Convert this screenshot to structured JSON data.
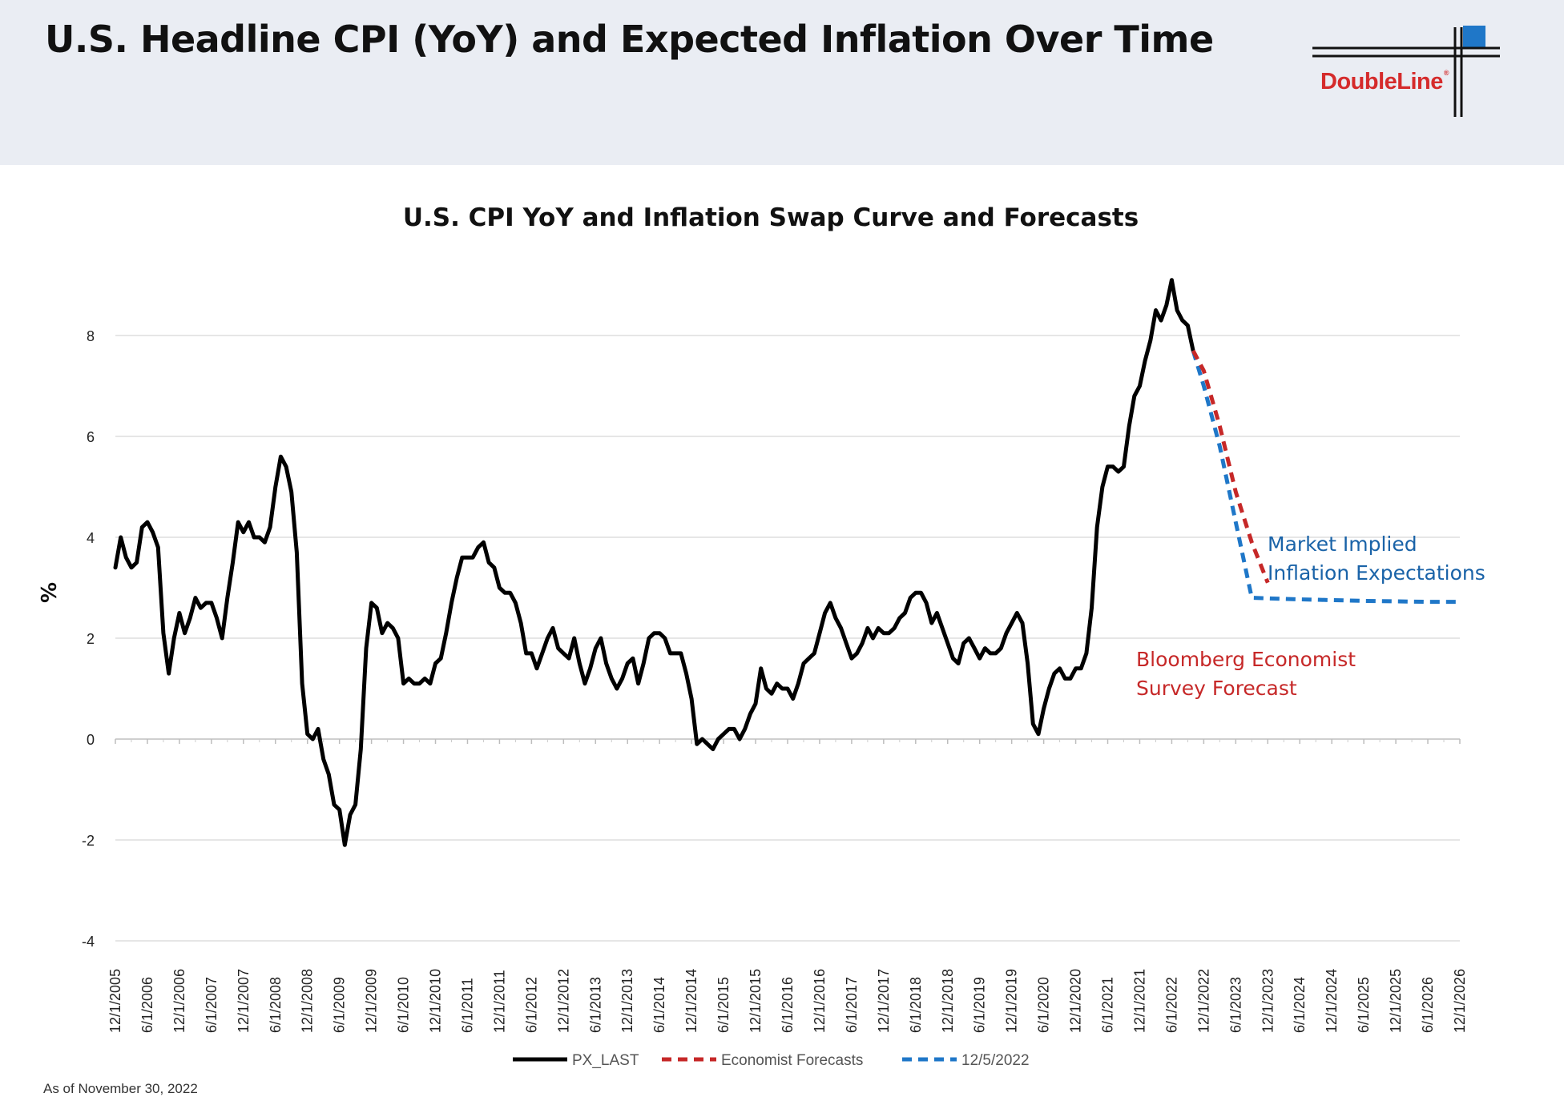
{
  "header": {
    "title": "U.S. Headline CPI (YoY) and Expected Inflation Over Time",
    "logo_text": "DoubleLine",
    "logo_mark": "®"
  },
  "footnote": "As of November 30, 2022",
  "colors": {
    "header_bg": "#eaedf3",
    "cpi_line": "#000000",
    "economist_forecast": "#c62828",
    "market_implied": "#1f77c8",
    "logo_red": "#d52b2b",
    "logo_blue": "#1f77c8",
    "annotation_blue": "#1a63a8"
  },
  "chart_data": {
    "type": "line",
    "title": "U.S. CPI YoY and Inflation Swap Curve and Forecasts",
    "ylabel": "%",
    "xlabel": "",
    "ylim": [
      -4,
      9.5
    ],
    "yticks": [
      -4,
      -2,
      0,
      2,
      4,
      6,
      8
    ],
    "x_range": [
      "2005-12",
      "2026-12"
    ],
    "x_tick_labels": [
      "12/1/2005",
      "6/1/2006",
      "12/1/2006",
      "6/1/2007",
      "12/1/2007",
      "6/1/2008",
      "12/1/2008",
      "6/1/2009",
      "12/1/2009",
      "6/1/2010",
      "12/1/2010",
      "6/1/2011",
      "12/1/2011",
      "6/1/2012",
      "12/1/2012",
      "6/1/2013",
      "12/1/2013",
      "6/1/2014",
      "12/1/2014",
      "6/1/2015",
      "12/1/2015",
      "6/1/2016",
      "12/1/2016",
      "6/1/2017",
      "12/1/2017",
      "6/1/2018",
      "12/1/2018",
      "6/1/2019",
      "12/1/2019",
      "6/1/2020",
      "12/1/2020",
      "6/1/2021",
      "12/1/2021",
      "6/1/2022",
      "12/1/2022",
      "6/1/2023",
      "12/1/2023",
      "6/1/2024",
      "12/1/2024",
      "6/1/2025",
      "12/1/2025",
      "6/1/2026",
      "12/1/2026"
    ],
    "grid": true,
    "legend_position": "bottom",
    "series": [
      {
        "name": "PX_LAST",
        "style": "solid",
        "x": [
          "2005-12",
          "2006-01",
          "2006-02",
          "2006-03",
          "2006-04",
          "2006-05",
          "2006-06",
          "2006-07",
          "2006-08",
          "2006-09",
          "2006-10",
          "2006-11",
          "2006-12",
          "2007-01",
          "2007-02",
          "2007-03",
          "2007-04",
          "2007-05",
          "2007-06",
          "2007-07",
          "2007-08",
          "2007-09",
          "2007-10",
          "2007-11",
          "2007-12",
          "2008-01",
          "2008-02",
          "2008-03",
          "2008-04",
          "2008-05",
          "2008-06",
          "2008-07",
          "2008-08",
          "2008-09",
          "2008-10",
          "2008-11",
          "2008-12",
          "2009-01",
          "2009-02",
          "2009-03",
          "2009-04",
          "2009-05",
          "2009-06",
          "2009-07",
          "2009-08",
          "2009-09",
          "2009-10",
          "2009-11",
          "2009-12",
          "2010-01",
          "2010-02",
          "2010-03",
          "2010-04",
          "2010-05",
          "2010-06",
          "2010-07",
          "2010-08",
          "2010-09",
          "2010-10",
          "2010-11",
          "2010-12",
          "2011-01",
          "2011-02",
          "2011-03",
          "2011-04",
          "2011-05",
          "2011-06",
          "2011-07",
          "2011-08",
          "2011-09",
          "2011-10",
          "2011-11",
          "2011-12",
          "2012-01",
          "2012-02",
          "2012-03",
          "2012-04",
          "2012-05",
          "2012-06",
          "2012-07",
          "2012-08",
          "2012-09",
          "2012-10",
          "2012-11",
          "2012-12",
          "2013-01",
          "2013-02",
          "2013-03",
          "2013-04",
          "2013-05",
          "2013-06",
          "2013-07",
          "2013-08",
          "2013-09",
          "2013-10",
          "2013-11",
          "2013-12",
          "2014-01",
          "2014-02",
          "2014-03",
          "2014-04",
          "2014-05",
          "2014-06",
          "2014-07",
          "2014-08",
          "2014-09",
          "2014-10",
          "2014-11",
          "2014-12",
          "2015-01",
          "2015-02",
          "2015-03",
          "2015-04",
          "2015-05",
          "2015-06",
          "2015-07",
          "2015-08",
          "2015-09",
          "2015-10",
          "2015-11",
          "2015-12",
          "2016-01",
          "2016-02",
          "2016-03",
          "2016-04",
          "2016-05",
          "2016-06",
          "2016-07",
          "2016-08",
          "2016-09",
          "2016-10",
          "2016-11",
          "2016-12",
          "2017-01",
          "2017-02",
          "2017-03",
          "2017-04",
          "2017-05",
          "2017-06",
          "2017-07",
          "2017-08",
          "2017-09",
          "2017-10",
          "2017-11",
          "2017-12",
          "2018-01",
          "2018-02",
          "2018-03",
          "2018-04",
          "2018-05",
          "2018-06",
          "2018-07",
          "2018-08",
          "2018-09",
          "2018-10",
          "2018-11",
          "2018-12",
          "2019-01",
          "2019-02",
          "2019-03",
          "2019-04",
          "2019-05",
          "2019-06",
          "2019-07",
          "2019-08",
          "2019-09",
          "2019-10",
          "2019-11",
          "2019-12",
          "2020-01",
          "2020-02",
          "2020-03",
          "2020-04",
          "2020-05",
          "2020-06",
          "2020-07",
          "2020-08",
          "2020-09",
          "2020-10",
          "2020-11",
          "2020-12",
          "2021-01",
          "2021-02",
          "2021-03",
          "2021-04",
          "2021-05",
          "2021-06",
          "2021-07",
          "2021-08",
          "2021-09",
          "2021-10",
          "2021-11",
          "2021-12",
          "2022-01",
          "2022-02",
          "2022-03",
          "2022-04",
          "2022-05",
          "2022-06",
          "2022-07",
          "2022-08",
          "2022-09",
          "2022-10"
        ],
        "values": [
          3.4,
          4.0,
          3.6,
          3.4,
          3.5,
          4.2,
          4.3,
          4.1,
          3.8,
          2.1,
          1.3,
          2.0,
          2.5,
          2.1,
          2.4,
          2.8,
          2.6,
          2.7,
          2.7,
          2.4,
          2.0,
          2.8,
          3.5,
          4.3,
          4.1,
          4.3,
          4.0,
          4.0,
          3.9,
          4.2,
          5.0,
          5.6,
          5.4,
          4.9,
          3.7,
          1.1,
          0.1,
          0.0,
          0.2,
          -0.4,
          -0.7,
          -1.3,
          -1.4,
          -2.1,
          -1.5,
          -1.3,
          -0.2,
          1.8,
          2.7,
          2.6,
          2.1,
          2.3,
          2.2,
          2.0,
          1.1,
          1.2,
          1.1,
          1.1,
          1.2,
          1.1,
          1.5,
          1.6,
          2.1,
          2.7,
          3.2,
          3.6,
          3.6,
          3.6,
          3.8,
          3.9,
          3.5,
          3.4,
          3.0,
          2.9,
          2.9,
          2.7,
          2.3,
          1.7,
          1.7,
          1.4,
          1.7,
          2.0,
          2.2,
          1.8,
          1.7,
          1.6,
          2.0,
          1.5,
          1.1,
          1.4,
          1.8,
          2.0,
          1.5,
          1.2,
          1.0,
          1.2,
          1.5,
          1.6,
          1.1,
          1.5,
          2.0,
          2.1,
          2.1,
          2.0,
          1.7,
          1.7,
          1.7,
          1.3,
          0.8,
          -0.1,
          0.0,
          -0.1,
          -0.2,
          0.0,
          0.1,
          0.2,
          0.2,
          0.0,
          0.2,
          0.5,
          0.7,
          1.4,
          1.0,
          0.9,
          1.1,
          1.0,
          1.0,
          0.8,
          1.1,
          1.5,
          1.6,
          1.7,
          2.1,
          2.5,
          2.7,
          2.4,
          2.2,
          1.9,
          1.6,
          1.7,
          1.9,
          2.2,
          2.0,
          2.2,
          2.1,
          2.1,
          2.2,
          2.4,
          2.5,
          2.8,
          2.9,
          2.9,
          2.7,
          2.3,
          2.5,
          2.2,
          1.9,
          1.6,
          1.5,
          1.9,
          2.0,
          1.8,
          1.6,
          1.8,
          1.7,
          1.7,
          1.8,
          2.1,
          2.3,
          2.5,
          2.3,
          1.5,
          0.3,
          0.1,
          0.6,
          1.0,
          1.3,
          1.4,
          1.2,
          1.2,
          1.4,
          1.4,
          1.7,
          2.6,
          4.2,
          5.0,
          5.4,
          5.4,
          5.3,
          5.4,
          6.2,
          6.8,
          7.0,
          7.5,
          7.9,
          8.5,
          8.3,
          8.6,
          9.1,
          8.5,
          8.3,
          8.2,
          7.7
        ]
      },
      {
        "name": "Economist Forecasts",
        "style": "dashed",
        "x": [
          "2022-10",
          "2022-12",
          "2023-03",
          "2023-06",
          "2023-09",
          "2023-12"
        ],
        "values": [
          7.7,
          7.3,
          6.2,
          4.9,
          3.9,
          3.1
        ]
      },
      {
        "name": "12/5/2022",
        "style": "dashed",
        "x": [
          "2022-10",
          "2022-12",
          "2023-03",
          "2023-06",
          "2023-09",
          "2024-06",
          "2025-06",
          "2026-06",
          "2026-12"
        ],
        "values": [
          7.7,
          7.0,
          5.8,
          4.3,
          2.8,
          2.77,
          2.74,
          2.72,
          2.72
        ]
      }
    ],
    "annotations": [
      {
        "lines": [
          "Market Implied",
          "Inflation Expectations"
        ],
        "color": "annotation_blue",
        "position": "right, near forecast plateau"
      },
      {
        "lines": [
          "Bloomberg Economist",
          "Survey Forecast"
        ],
        "color": "economist_forecast",
        "position": "below forecast curves"
      }
    ]
  }
}
